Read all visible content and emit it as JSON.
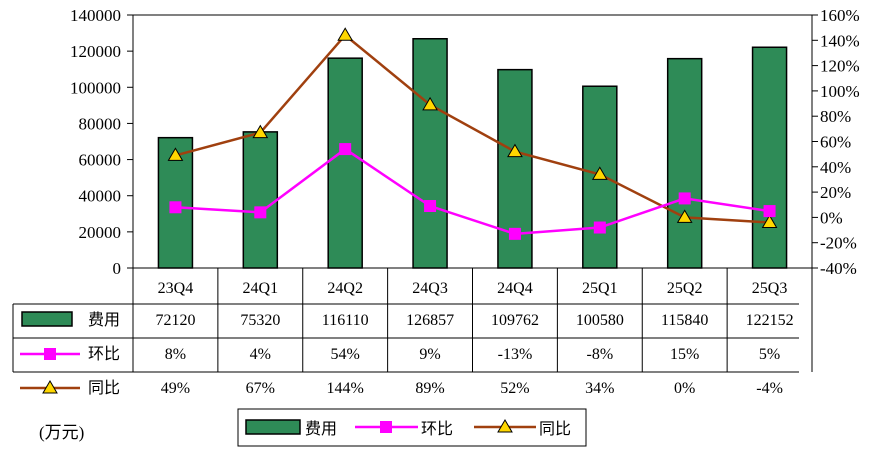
{
  "chart_data": {
    "type": "bar",
    "categories": [
      "23Q4",
      "24Q1",
      "24Q2",
      "24Q3",
      "24Q4",
      "25Q1",
      "25Q2",
      "25Q3"
    ],
    "series": [
      {
        "name": "费用",
        "kind": "bar",
        "axis": "left",
        "color": "#2e8b57",
        "values": [
          72120,
          75320,
          116110,
          126857,
          109762,
          100580,
          115840,
          122152
        ]
      },
      {
        "name": "环比",
        "kind": "line",
        "axis": "right",
        "color": "#ff00ff",
        "marker": "square",
        "values": [
          8,
          4,
          54,
          9,
          -13,
          -8,
          15,
          5
        ],
        "labels": [
          "8%",
          "4%",
          "54%",
          "9%",
          "-13%",
          "-8%",
          "15%",
          "5%"
        ]
      },
      {
        "name": "同比",
        "kind": "line",
        "axis": "right",
        "color": "#a0400f",
        "marker": "triangle",
        "marker_fill": "#ffd700",
        "values": [
          49,
          67,
          144,
          89,
          52,
          34,
          0,
          -4
        ],
        "labels": [
          "49%",
          "67%",
          "144%",
          "89%",
          "52%",
          "34%",
          "0%",
          "-4%"
        ]
      }
    ],
    "y_left": {
      "min": 0,
      "max": 140000,
      "step": 20000,
      "ticks": [
        "0",
        "20000",
        "40000",
        "60000",
        "80000",
        "100000",
        "120000",
        "140000"
      ]
    },
    "y_right": {
      "min": -40,
      "max": 160,
      "step": 20,
      "ticks": [
        "-40%",
        "-20%",
        "0%",
        "20%",
        "40%",
        "60%",
        "80%",
        "100%",
        "120%",
        "140%",
        "160%"
      ]
    },
    "legend": {
      "position": "bottom",
      "items": [
        "费用",
        "环比",
        "同比"
      ]
    },
    "unit_label": "(万元)",
    "grid": false
  }
}
